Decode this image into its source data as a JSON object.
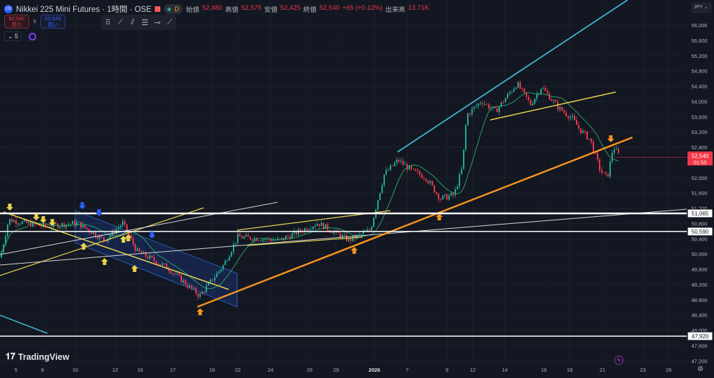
{
  "header": {
    "symbol_logo": "225",
    "title": "Nikkei 225 Mini Futures · 1時間 · OSE",
    "status_badge": "D",
    "ohlc": [
      {
        "label": "始値",
        "value": "52,480"
      },
      {
        "label": "高値",
        "value": "52,575"
      },
      {
        "label": "安値",
        "value": "52,425"
      },
      {
        "label": "終値",
        "value": "52,540"
      }
    ],
    "change": "+65 (+0.12%)",
    "volume_label": "出来高",
    "volume": "13.71K"
  },
  "trade": {
    "sell_price": "52,540",
    "sell_label": "売り",
    "spread": "5",
    "buy_price": "52,545",
    "buy_label": "買い"
  },
  "indicators": {
    "toggle_label": "5"
  },
  "toolbar": {
    "icons": [
      "drag-handle-icon",
      "trend-line-icon",
      "parallel-channel-icon",
      "fib-retracement-icon",
      "horizontal-ray-icon",
      "ray-icon"
    ]
  },
  "currency": "JPY",
  "branding": "TradingView",
  "colors": {
    "background": "#131722",
    "up": "#22ab94",
    "down": "#f23645",
    "ma": "#26a269",
    "cyan": "#3fb8d0",
    "orange": "#f7931e",
    "yellow": "#e8d44d",
    "blue": "#2962ff"
  },
  "chart_data": {
    "type": "candlestick",
    "price_ticks": [
      "56,000",
      "55,600",
      "55,200",
      "54,800",
      "54,400",
      "54,000",
      "53,600",
      "53,200",
      "52,800",
      "52,000",
      "51,600",
      "51,200",
      "50,800",
      "50,400",
      "50,000",
      "49,600",
      "49,200",
      "48,800",
      "48,400",
      "48,000",
      "47,600",
      "47,200"
    ],
    "date_ticks": [
      "5",
      "8",
      "10",
      "12",
      "15",
      "17",
      "19",
      "22",
      "24",
      "26",
      "29",
      "2026",
      "7",
      "9",
      "12",
      "14",
      "16",
      "19",
      "21",
      "23",
      "26"
    ],
    "ylim": [
      47000,
      56400
    ],
    "last_price": {
      "value": "52,540",
      "countdown": "01:55"
    },
    "horizontal_levels": [
      {
        "value": 51065,
        "label": "51,065"
      },
      {
        "value": 50590,
        "label": "50,590"
      },
      {
        "value": 47920,
        "label": "47,920"
      }
    ],
    "close_path": [
      [
        "2025-12-03T03",
        49900
      ],
      [
        "2025-12-04T02",
        50900
      ],
      [
        "2025-12-08T00",
        50720
      ],
      [
        "2025-12-10T02",
        50810
      ],
      [
        "2025-12-11T11",
        50360
      ],
      [
        "2025-12-12T20",
        50810
      ],
      [
        "2025-12-14T12",
        50080
      ],
      [
        "2025-12-16T16",
        49630
      ],
      [
        "2025-12-18T08",
        48900
      ],
      [
        "2025-12-20T07",
        49720
      ],
      [
        "2025-12-21T22",
        50450
      ],
      [
        "2025-12-24T10",
        50360
      ],
      [
        "2025-12-26T21",
        50810
      ],
      [
        "2025-12-29T23",
        50360
      ],
      [
        "2025-12-31T15",
        50630
      ],
      [
        "2026-01-01T09",
        51360
      ],
      [
        "2026-01-02T16",
        52090
      ],
      [
        "2026-01-05T05",
        52460
      ],
      [
        "2026-01-07T05",
        52180
      ],
      [
        "2026-01-07T22",
        52000
      ],
      [
        "2026-01-08T15",
        51450
      ],
      [
        "2026-01-09T18",
        51550
      ],
      [
        "2026-01-10T17",
        52270
      ],
      [
        "2026-01-11T05",
        53640
      ],
      [
        "2026-01-12T12",
        54010
      ],
      [
        "2026-01-13T09",
        53740
      ],
      [
        "2026-01-14T14",
        54470
      ],
      [
        "2026-01-15T07",
        53920
      ],
      [
        "2026-01-15T20",
        54380
      ],
      [
        "2026-01-17T15",
        53830
      ],
      [
        "2026-01-19T03",
        53550
      ],
      [
        "2026-01-19T13",
        53280
      ],
      [
        "2026-01-20T05",
        53000
      ],
      [
        "2026-01-20T20",
        52180
      ],
      [
        "2026-01-21T05",
        52000
      ],
      [
        "2026-01-21T12",
        52820
      ],
      [
        "2026-01-21T20",
        52540
      ]
    ]
  }
}
